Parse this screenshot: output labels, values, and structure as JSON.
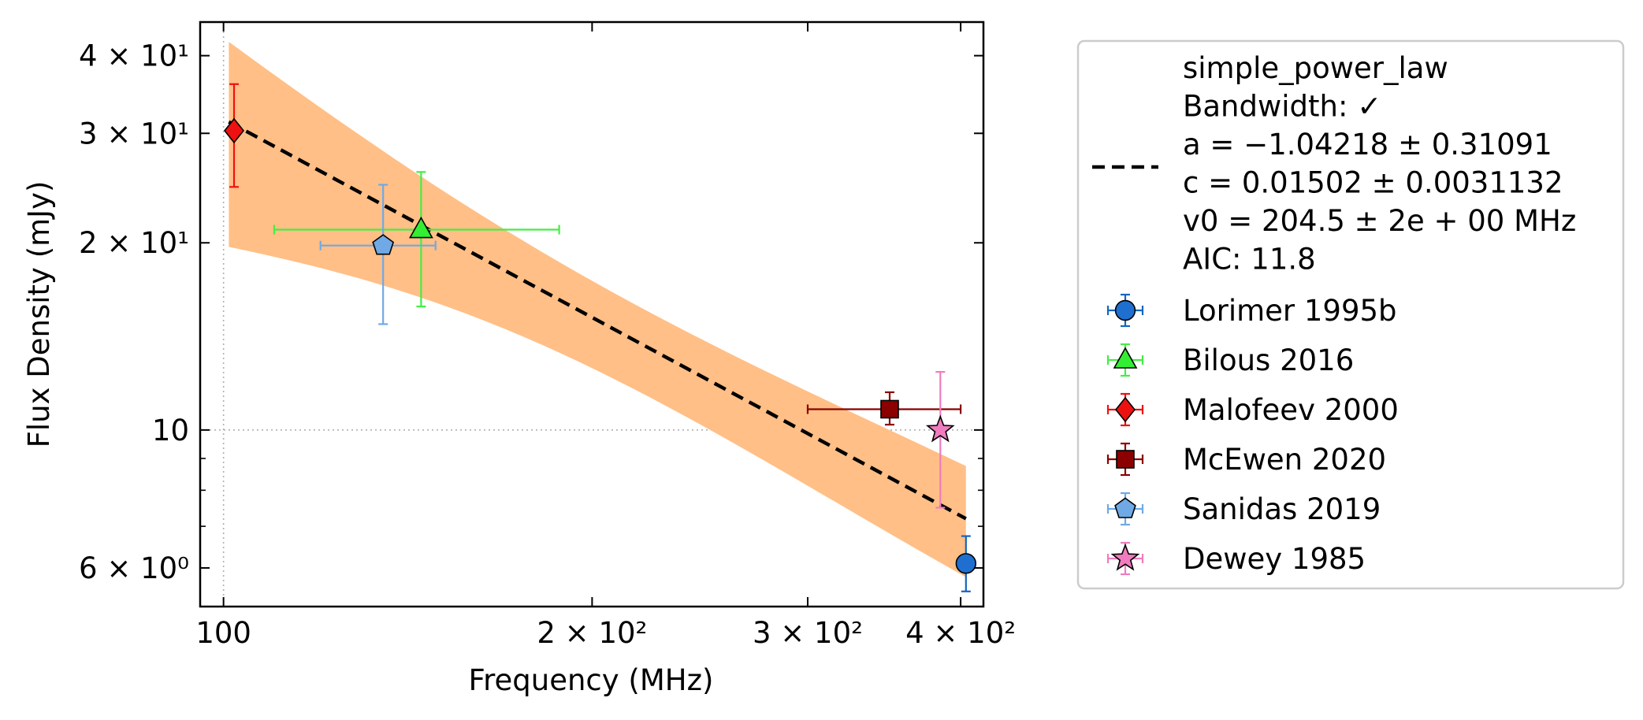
{
  "chart_data": {
    "type": "scatter",
    "xlabel": "Frequency (MHz)",
    "ylabel": "Flux Density (mJy)",
    "xscale": "log",
    "yscale": "log",
    "xlim": [
      95.7,
      417.5
    ],
    "ylim": [
      5.2,
      45.3
    ],
    "x_ticks": [
      {
        "value": 100,
        "label": "100"
      },
      {
        "value": 200,
        "label": "2 × 10²"
      },
      {
        "value": 300,
        "label": "3 × 10²"
      },
      {
        "value": 400,
        "label": "4 × 10²"
      }
    ],
    "y_ticks": [
      {
        "value": 6,
        "label": "6 × 10⁰"
      },
      {
        "value": 10,
        "label": "10"
      },
      {
        "value": 20,
        "label": "2 × 10¹"
      },
      {
        "value": 30,
        "label": "3 × 10¹"
      },
      {
        "value": 40,
        "label": "4 × 10¹"
      }
    ],
    "grid": "dotted lines at x=100 and y=10",
    "legend_placement": "outside-right",
    "fit": {
      "name": "simple_power_law",
      "color": "#000000",
      "style": "dashed",
      "x": [
        101,
        404
      ],
      "y": [
        31.3,
        7.2
      ],
      "band_lower": [
        19.7,
        5.8
      ],
      "band_upper": [
        42.1,
        8.75
      ],
      "band_color": "#ffbf86",
      "legend_lines": [
        "simple_power_law",
        "Bandwidth: ✓",
        "a = −1.04218 ± 0.31091",
        "c = 0.01502 ± 0.0031132",
        "v0 = 204.5 ± 2e + 00 MHz",
        "AIC: 11.8"
      ]
    },
    "series": [
      {
        "name": "Lorimer 1995b",
        "marker": "circle",
        "color": "#1f6fd0",
        "ecolor": "#1565c0",
        "points": [
          {
            "x": 404,
            "y": 6.1,
            "yerr_low": 5.5,
            "yerr_high": 6.75
          }
        ]
      },
      {
        "name": "Bilous 2016",
        "marker": "triangle",
        "color": "#33ee33",
        "ecolor": "#44ee44",
        "points": [
          {
            "x": 145,
            "y": 21.0,
            "xerr_low": 110,
            "xerr_high": 188,
            "yerr_low": 15.8,
            "yerr_high": 26.0
          }
        ]
      },
      {
        "name": "Malofeev 2000",
        "marker": "diamond",
        "color": "#ee1111",
        "ecolor": "#ee1111",
        "points": [
          {
            "x": 102,
            "y": 30.3,
            "yerr_low": 24.6,
            "yerr_high": 36.0
          }
        ]
      },
      {
        "name": "McEwen 2020",
        "marker": "square",
        "color": "#8b0000",
        "ecolor": "#8b0000",
        "points": [
          {
            "x": 350,
            "y": 10.8,
            "xerr_low": 300,
            "xerr_high": 400,
            "yerr_low": 10.2,
            "yerr_high": 11.5
          }
        ]
      },
      {
        "name": "Sanidas 2019",
        "marker": "pentagon",
        "color": "#6fa9e6",
        "ecolor": "#6fa9e6",
        "points": [
          {
            "x": 135,
            "y": 19.8,
            "xerr_low": 120,
            "xerr_high": 149,
            "yerr_low": 14.8,
            "yerr_high": 24.8
          }
        ]
      },
      {
        "name": "Dewey 1985",
        "marker": "star",
        "color": "#f07cbf",
        "ecolor": "#f07cbf",
        "points": [
          {
            "x": 385,
            "y": 10.0,
            "yerr_low": 7.5,
            "yerr_high": 12.4
          }
        ]
      }
    ]
  }
}
